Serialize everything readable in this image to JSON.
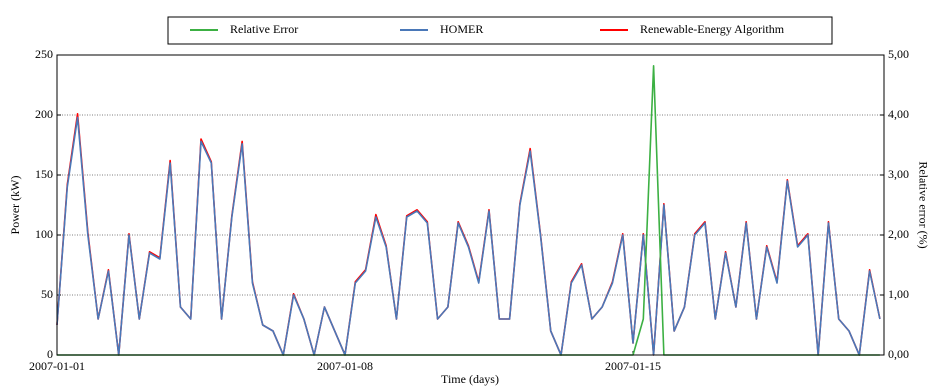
{
  "chart_data": {
    "type": "line",
    "xlabel": "Time (days)",
    "ylabel": "Power (kW)",
    "y2label": "Relative error (%)",
    "x": [
      0,
      0.25,
      0.5,
      0.75,
      1,
      1.25,
      1.5,
      1.75,
      2,
      2.25,
      2.5,
      2.75,
      3,
      3.25,
      3.5,
      3.75,
      4,
      4.25,
      4.5,
      4.75,
      5,
      5.25,
      5.5,
      5.75,
      6,
      6.25,
      6.5,
      6.75,
      7,
      7.25,
      7.5,
      7.75,
      8,
      8.25,
      8.5,
      8.75,
      9,
      9.25,
      9.5,
      9.75,
      10,
      10.25,
      10.5,
      10.75,
      11,
      11.25,
      11.5,
      11.75,
      12,
      12.25,
      12.5,
      12.75,
      13,
      13.25,
      13.5,
      13.75,
      14,
      14.25,
      14.5,
      14.75,
      15,
      15.25,
      15.5,
      15.75,
      16,
      16.25,
      16.5,
      16.75,
      17,
      17.25,
      17.5,
      17.75,
      18,
      18.25,
      18.5,
      18.75,
      19,
      19.25,
      19.5,
      19.75,
      20
    ],
    "series": [
      {
        "name": "Relative Error",
        "color": "#3cb043",
        "axis": "y2",
        "values": [
          0,
          0,
          0,
          0,
          0,
          0,
          0,
          0,
          0,
          0,
          0,
          0,
          0,
          0,
          0,
          0,
          0,
          0,
          0,
          0,
          0,
          0,
          0,
          0,
          0,
          0,
          0,
          0,
          0,
          0,
          0,
          0,
          0,
          0,
          0,
          0,
          0,
          0,
          0,
          0,
          0,
          0,
          0,
          0,
          0,
          0,
          0,
          0,
          0,
          0,
          0,
          0,
          0,
          0,
          0,
          0,
          0,
          0.6,
          4.82,
          0,
          0,
          0,
          0,
          0,
          0,
          0,
          0,
          0,
          0,
          0,
          0,
          0,
          0,
          0,
          0,
          0,
          0,
          0,
          0,
          0,
          0
        ]
      },
      {
        "name": "HOMER",
        "color": "#4a78b8",
        "values": [
          25,
          140,
          198,
          100,
          30,
          70,
          0,
          100,
          30,
          85,
          80,
          160,
          40,
          30,
          178,
          160,
          30,
          115,
          176,
          60,
          25,
          20,
          0,
          50,
          30,
          0,
          40,
          20,
          0,
          60,
          70,
          115,
          90,
          30,
          115,
          120,
          110,
          30,
          40,
          110,
          90,
          60,
          120,
          30,
          30,
          125,
          170,
          100,
          20,
          0,
          60,
          75,
          30,
          40,
          60,
          100,
          10,
          100,
          0,
          125,
          20,
          40,
          100,
          110,
          30,
          85,
          40,
          110,
          30,
          90,
          60,
          145,
          90,
          100,
          0,
          110,
          30,
          20,
          0,
          70,
          30
        ]
      },
      {
        "name": "Renewable-Energy Algorithm",
        "color": "#ff0000",
        "values": [
          25,
          142,
          201,
          102,
          30,
          71,
          0,
          101,
          30,
          86,
          81,
          162,
          40,
          30,
          180,
          161,
          30,
          116,
          178,
          61,
          25,
          20,
          0,
          51,
          30,
          0,
          40,
          20,
          0,
          61,
          71,
          117,
          91,
          30,
          116,
          121,
          111,
          30,
          40,
          111,
          91,
          61,
          121,
          30,
          30,
          126,
          172,
          101,
          20,
          0,
          61,
          76,
          30,
          40,
          61,
          101,
          10,
          101,
          0,
          126,
          20,
          40,
          101,
          111,
          30,
          86,
          40,
          111,
          30,
          91,
          61,
          146,
          91,
          101,
          0,
          111,
          30,
          20,
          0,
          71,
          30
        ]
      }
    ],
    "xlim": [
      0,
      20.1
    ],
    "xticks": [
      {
        "value": 0,
        "label": "2007-01-01"
      },
      {
        "value": 7,
        "label": "2007-01-08"
      },
      {
        "value": 14,
        "label": "2007-01-15"
      }
    ],
    "ylim": [
      0,
      250
    ],
    "yticks": [
      0,
      50,
      100,
      150,
      200,
      250
    ],
    "y2lim": [
      0,
      5
    ],
    "y2ticks": [
      {
        "value": 0,
        "label": "0,00"
      },
      {
        "value": 1,
        "label": "1,00"
      },
      {
        "value": 2,
        "label": "2,00"
      },
      {
        "value": 3,
        "label": "3,00"
      },
      {
        "value": 4,
        "label": "4,00"
      },
      {
        "value": 5,
        "label": "5,00"
      }
    ],
    "grid": true,
    "legend": "top"
  }
}
